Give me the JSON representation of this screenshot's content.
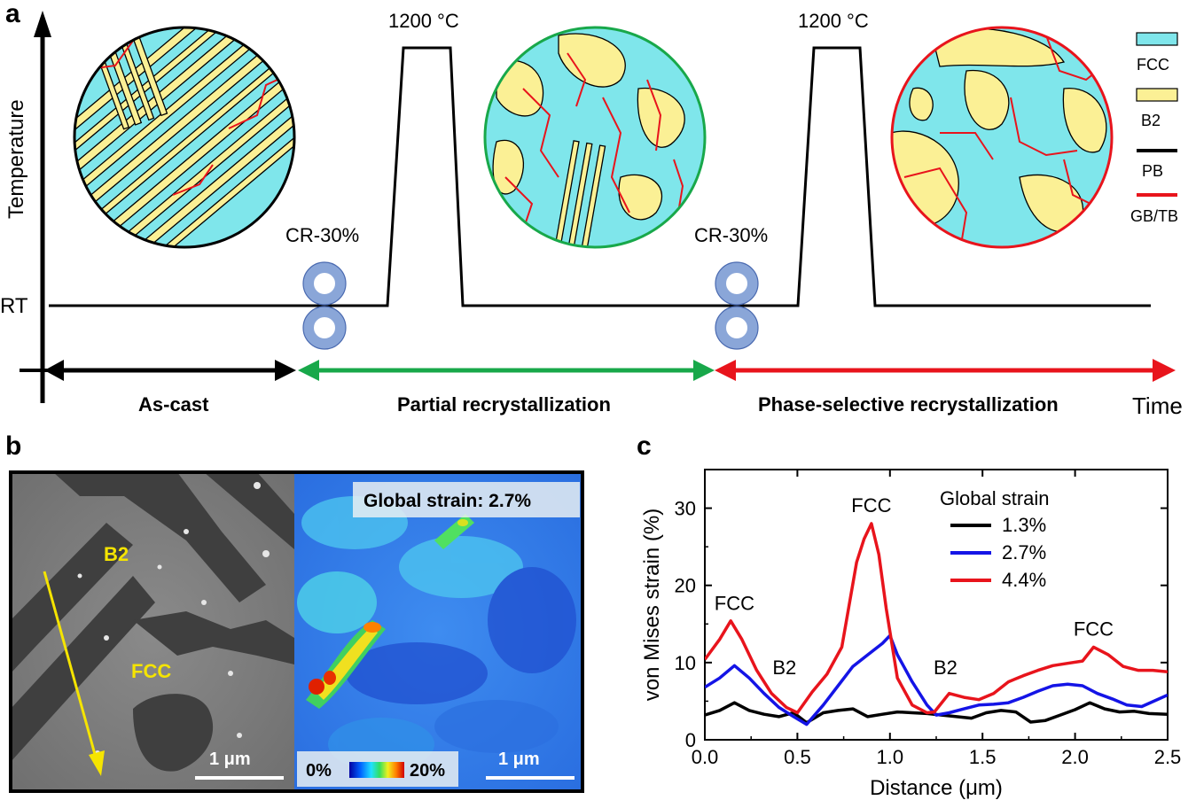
{
  "panels": {
    "a": "a",
    "b": "b",
    "c": "c"
  },
  "panel_a": {
    "y_axis_label": "Temperature",
    "rt_label": "RT",
    "time_label": "Time",
    "temp_peak_1": "1200 °C",
    "temp_peak_2": "1200 °C",
    "cold_roll_1": "CR-30%",
    "cold_roll_2": "CR-30%",
    "stages": {
      "as_cast": "As-cast",
      "partial": "Partial recrystallization",
      "phase_selective": "Phase-selective recrystallization"
    },
    "legend": [
      {
        "label": "FCC",
        "color": "#7fe6eb"
      },
      {
        "label": "B2",
        "color": "#fbf095"
      },
      {
        "label": "PB",
        "color": "#000000"
      },
      {
        "label": "GB/TB",
        "color": "#e8141c"
      }
    ],
    "colors": {
      "as_cast_arrow": "#000000",
      "partial_arrow": "#18a84a",
      "phase_arrow": "#e8141c",
      "roll": "#8aa6d8"
    }
  },
  "panel_b": {
    "b2_label": "B2",
    "fcc_label": "FCC",
    "scale_left": "1 μm",
    "scale_right": "1 μm",
    "global_strain": "Global strain: 2.7%",
    "colorbar_min": "0%",
    "colorbar_max": "20%"
  },
  "chart_data": {
    "type": "line",
    "title": "",
    "xlabel": "Distance (μm)",
    "ylabel": "von Mises strain (%)",
    "xlim": [
      0.0,
      2.5
    ],
    "ylim": [
      0,
      35
    ],
    "xticks": [
      "0.0",
      "0.5",
      "1.0",
      "1.5",
      "2.0",
      "2.5"
    ],
    "yticks": [
      "0",
      "10",
      "20",
      "30"
    ],
    "legend_title": "Global strain",
    "annotations": [
      {
        "text": "FCC",
        "x": 0.16,
        "y": 16.8
      },
      {
        "text": "B2",
        "x": 0.43,
        "y": 8.5
      },
      {
        "text": "FCC",
        "x": 0.9,
        "y": 29.5
      },
      {
        "text": "B2",
        "x": 1.3,
        "y": 8.5
      },
      {
        "text": "FCC",
        "x": 2.1,
        "y": 13.5
      }
    ],
    "series": [
      {
        "name": "1.3%",
        "color": "#000000",
        "x": [
          0.0,
          0.08,
          0.16,
          0.24,
          0.32,
          0.4,
          0.48,
          0.55,
          0.64,
          0.72,
          0.8,
          0.88,
          0.96,
          1.04,
          1.12,
          1.2,
          1.28,
          1.36,
          1.44,
          1.52,
          1.6,
          1.68,
          1.76,
          1.84,
          1.92,
          2.0,
          2.08,
          2.16,
          2.24,
          2.32,
          2.4,
          2.5
        ],
        "y": [
          3.2,
          3.8,
          4.8,
          3.8,
          3.3,
          3.0,
          3.5,
          2.2,
          3.5,
          3.8,
          4.0,
          3.0,
          3.3,
          3.6,
          3.5,
          3.4,
          3.2,
          3.0,
          2.8,
          3.5,
          3.8,
          3.6,
          2.3,
          2.5,
          3.2,
          3.9,
          4.8,
          4.0,
          3.6,
          3.7,
          3.4,
          3.3
        ]
      },
      {
        "name": "2.7%",
        "color": "#1414e6",
        "x": [
          0.0,
          0.08,
          0.16,
          0.24,
          0.32,
          0.4,
          0.48,
          0.55,
          0.64,
          0.72,
          0.8,
          0.88,
          0.96,
          1.0,
          1.04,
          1.12,
          1.2,
          1.25,
          1.32,
          1.4,
          1.48,
          1.56,
          1.64,
          1.72,
          1.8,
          1.88,
          1.96,
          2.04,
          2.12,
          2.2,
          2.28,
          2.36,
          2.5
        ],
        "y": [
          6.8,
          8.0,
          9.6,
          8.0,
          6.0,
          4.2,
          3.0,
          2.0,
          4.5,
          7.0,
          9.5,
          11.0,
          12.5,
          13.5,
          11.0,
          7.5,
          4.5,
          3.2,
          3.5,
          4.0,
          4.5,
          4.6,
          4.8,
          5.5,
          6.3,
          7.0,
          7.2,
          7.0,
          6.0,
          5.3,
          4.5,
          4.3,
          5.8
        ]
      },
      {
        "name": "4.4%",
        "color": "#e8141c",
        "x": [
          0.0,
          0.08,
          0.14,
          0.2,
          0.28,
          0.36,
          0.44,
          0.5,
          0.58,
          0.66,
          0.74,
          0.82,
          0.86,
          0.9,
          0.94,
          0.98,
          1.04,
          1.12,
          1.2,
          1.24,
          1.32,
          1.4,
          1.48,
          1.56,
          1.64,
          1.72,
          1.8,
          1.88,
          1.96,
          2.04,
          2.1,
          2.18,
          2.26,
          2.34,
          2.42,
          2.5
        ],
        "y": [
          10.4,
          13.0,
          15.4,
          13.0,
          9.0,
          6.0,
          4.2,
          3.5,
          6.2,
          8.5,
          12.0,
          23.0,
          26.0,
          28.0,
          24.0,
          17.0,
          8.0,
          4.5,
          3.5,
          3.6,
          6.0,
          5.5,
          5.2,
          6.0,
          7.5,
          8.3,
          9.0,
          9.6,
          9.9,
          10.2,
          12.0,
          11.0,
          9.5,
          9.0,
          9.0,
          8.8
        ]
      }
    ]
  }
}
